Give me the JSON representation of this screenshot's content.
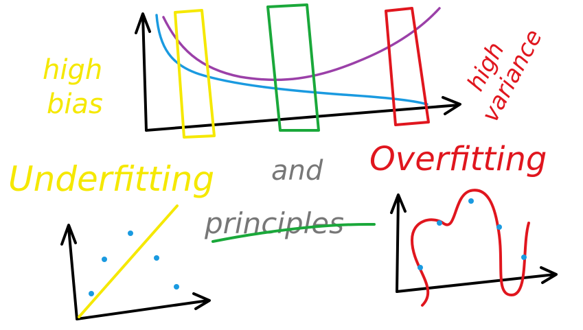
{
  "annotations": {
    "high_bias": [
      "high",
      "bias"
    ],
    "high_variance": [
      "high",
      "variance"
    ],
    "underfitting": "Underfitting",
    "and": "and",
    "principles": "principles",
    "overfitting": "Overfitting"
  }
}
